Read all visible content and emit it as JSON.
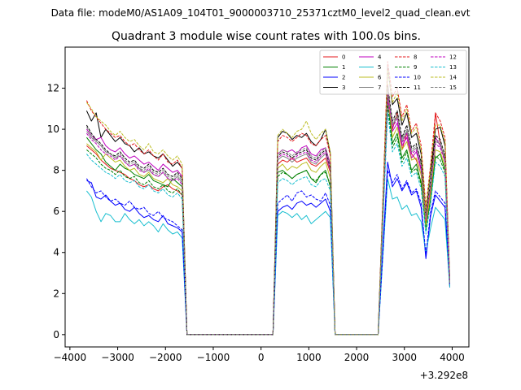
{
  "chart_data": {
    "type": "line",
    "suptitle": "Data file: modeM0/AS1A09_104T01_9000003710_25371cztM0_level2_quad_clean.evt",
    "title": "Quadrant 3 module wise count rates with 100.0s bins.",
    "xlabel": "",
    "ylabel": "",
    "x_offset_label": "+3.292e8",
    "xlim": [
      -4100,
      4350
    ],
    "ylim": [
      -0.6,
      14.0
    ],
    "xticks": [
      -4000,
      -3000,
      -2000,
      -1000,
      0,
      1000,
      2000,
      3000,
      4000
    ],
    "xtick_labels": [
      "−4000",
      "−3000",
      "−2000",
      "−1000",
      "0",
      "1000",
      "2000",
      "3000",
      "4000"
    ],
    "yticks": [
      0,
      2,
      4,
      6,
      8,
      10,
      12
    ],
    "ytick_labels": [
      "0",
      "2",
      "4",
      "6",
      "8",
      "10",
      "12"
    ],
    "grid": false,
    "legend_location": "top-right",
    "legend_columns": 4,
    "segments": [
      {
        "x0": -3650,
        "x1": -1650
      },
      {
        "x0": 350,
        "x1": 1450
      },
      {
        "x0": 2650,
        "x1": 3950
      }
    ],
    "gaps": [
      {
        "x": [
          -1550,
          250
        ]
      },
      {
        "x": [
          1550,
          2450
        ]
      }
    ],
    "segment_points": [
      21,
      12,
      14
    ],
    "spike_offsets": {
      "0": [
        0,
        0,
        0,
        0,
        0,
        0,
        0,
        0,
        0,
        0,
        0,
        0,
        0,
        0,
        0,
        0,
        0,
        0,
        0,
        0,
        0
      ],
      "1": [
        0,
        0,
        0,
        0,
        0,
        0,
        0,
        0,
        0,
        0,
        0,
        0
      ],
      "2": [
        0,
        0,
        0,
        0,
        0,
        0,
        0,
        0,
        0,
        0,
        0,
        0,
        0,
        0
      ]
    },
    "series": [
      {
        "name": "0",
        "color": "#e41a1c",
        "dash": "solid",
        "values": [
          [
            9.2,
            9.0,
            8.8,
            8.5,
            8.3,
            8.1,
            8.0,
            7.9,
            7.8,
            7.6,
            7.5,
            7.3,
            7.2,
            7.3,
            7.1,
            7.0,
            7.2,
            7.3,
            7.1,
            7.0,
            6.8
          ],
          [
            8.3,
            8.5,
            8.4,
            8.6,
            8.4,
            8.5,
            8.6,
            8.3,
            8.2,
            8.4,
            8.6,
            7.9
          ],
          [
            12.2,
            10.0,
            10.8,
            9.0,
            9.8,
            8.8,
            8.5,
            7.8,
            5.5,
            7.0,
            10.8,
            9.3,
            8.4,
            2.3
          ]
        ]
      },
      {
        "name": "1",
        "color": "#008000",
        "dash": "solid",
        "values": [
          [
            9.6,
            9.3,
            9.0,
            8.8,
            8.4,
            8.2,
            8.0,
            8.3,
            8.1,
            8.0,
            7.8,
            7.7,
            7.6,
            7.8,
            7.5,
            7.4,
            7.3,
            7.2,
            7.6,
            7.4,
            7.2
          ],
          [
            7.9,
            8.0,
            7.8,
            7.6,
            7.8,
            7.9,
            8.0,
            7.6,
            7.4,
            7.8,
            8.0,
            7.2
          ],
          [
            11.6,
            9.3,
            9.8,
            8.6,
            9.0,
            8.0,
            8.3,
            7.4,
            5.2,
            6.6,
            8.6,
            8.8,
            8.0,
            2.4
          ]
        ]
      },
      {
        "name": "2",
        "color": "#0000ff",
        "dash": "solid",
        "values": [
          [
            7.5,
            7.4,
            6.7,
            6.6,
            6.8,
            6.5,
            6.3,
            6.4,
            6.1,
            6.0,
            6.2,
            5.9,
            5.7,
            5.8,
            5.6,
            5.5,
            5.8,
            5.4,
            5.3,
            5.2,
            5.0
          ],
          [
            6.0,
            6.2,
            6.3,
            6.1,
            6.4,
            6.5,
            6.3,
            6.4,
            6.2,
            6.4,
            6.6,
            6.0
          ],
          [
            8.4,
            7.2,
            7.6,
            7.0,
            7.4,
            6.8,
            7.0,
            6.2,
            3.7,
            5.8,
            6.8,
            6.5,
            6.2,
            2.3
          ]
        ]
      },
      {
        "name": "3",
        "color": "#000000",
        "dash": "solid",
        "values": [
          [
            10.9,
            10.4,
            10.8,
            9.6,
            10.0,
            9.7,
            9.4,
            9.6,
            9.3,
            9.2,
            8.9,
            9.1,
            8.8,
            8.9,
            8.7,
            8.6,
            8.8,
            8.5,
            8.2,
            8.4,
            8.1
          ],
          [
            9.6,
            9.9,
            9.8,
            9.5,
            9.7,
            9.6,
            9.8,
            9.4,
            9.2,
            9.5,
            10.0,
            8.8
          ],
          [
            13.0,
            11.2,
            11.5,
            10.2,
            10.8,
            9.6,
            9.8,
            8.8,
            6.0,
            8.0,
            10.0,
            10.1,
            9.2,
            2.6
          ]
        ]
      },
      {
        "name": "4",
        "color": "#bf00bf",
        "dash": "solid",
        "values": [
          [
            10.0,
            9.7,
            9.5,
            9.6,
            9.2,
            9.0,
            8.9,
            9.1,
            8.8,
            8.6,
            8.7,
            8.5,
            8.3,
            8.4,
            8.2,
            8.0,
            8.3,
            8.1,
            7.9,
            8.0,
            7.7
          ],
          [
            8.8,
            9.0,
            8.9,
            9.0,
            8.8,
            9.1,
            9.2,
            8.8,
            8.7,
            9.0,
            9.1,
            8.3
          ],
          [
            11.4,
            9.9,
            10.3,
            9.2,
            9.6,
            8.6,
            8.9,
            8.0,
            5.6,
            7.4,
            9.6,
            9.2,
            8.6,
            2.5
          ]
        ]
      },
      {
        "name": "5",
        "color": "#17becf",
        "dash": "solid",
        "values": [
          [
            7.0,
            6.7,
            6.0,
            5.5,
            5.9,
            5.8,
            5.5,
            5.5,
            5.9,
            5.6,
            5.4,
            5.6,
            5.3,
            5.5,
            5.3,
            5.0,
            5.4,
            5.1,
            4.9,
            5.0,
            4.7
          ],
          [
            5.8,
            6.0,
            5.9,
            5.7,
            5.9,
            5.6,
            5.8,
            5.4,
            5.6,
            5.8,
            6.0,
            5.7
          ],
          [
            7.6,
            6.6,
            6.7,
            6.1,
            6.3,
            5.8,
            5.9,
            5.5,
            4.0,
            5.2,
            6.2,
            5.9,
            5.6,
            2.3
          ]
        ]
      },
      {
        "name": "6",
        "color": "#bcbd22",
        "dash": "solid",
        "values": [
          [
            9.3,
            9.1,
            8.9,
            8.5,
            8.8,
            8.6,
            8.4,
            8.5,
            8.2,
            8.0,
            8.1,
            7.8,
            7.7,
            7.9,
            7.6,
            7.5,
            7.4,
            7.6,
            7.3,
            7.2,
            7.0
          ],
          [
            8.1,
            8.3,
            8.0,
            8.2,
            8.1,
            8.3,
            8.4,
            8.0,
            7.9,
            8.2,
            8.4,
            7.6
          ],
          [
            11.8,
            9.6,
            10.1,
            9.0,
            9.4,
            8.5,
            8.6,
            7.8,
            5.3,
            6.9,
            9.0,
            8.9,
            8.2,
            2.4
          ]
        ]
      },
      {
        "name": "7",
        "color": "#808080",
        "dash": "solid",
        "values": [
          [
            9.9,
            9.6,
            9.4,
            9.2,
            8.9,
            8.8,
            8.6,
            8.7,
            8.4,
            8.2,
            8.3,
            8.1,
            7.9,
            8.0,
            7.8,
            7.7,
            7.9,
            7.6,
            7.5,
            7.7,
            7.4
          ],
          [
            8.5,
            8.7,
            8.6,
            8.4,
            8.6,
            8.7,
            8.8,
            8.4,
            8.3,
            8.6,
            8.8,
            8.0
          ],
          [
            11.9,
            10.2,
            10.6,
            9.4,
            9.9,
            8.9,
            9.1,
            8.2,
            5.7,
            7.3,
            9.4,
            9.3,
            8.5,
            2.5
          ]
        ]
      },
      {
        "name": "8",
        "color": "#e41a1c",
        "dash": "dashed",
        "values": [
          [
            11.4,
            10.9,
            10.6,
            10.3,
            10.0,
            9.8,
            9.6,
            9.7,
            9.4,
            9.2,
            9.3,
            9.0,
            8.8,
            9.0,
            8.7,
            8.5,
            8.8,
            8.4,
            8.3,
            8.5,
            8.1
          ],
          [
            9.4,
            9.7,
            9.6,
            9.4,
            9.6,
            9.8,
            9.7,
            9.3,
            9.2,
            9.5,
            9.7,
            8.7
          ],
          [
            13.3,
            11.6,
            12.0,
            10.6,
            11.2,
            9.9,
            10.3,
            9.2,
            6.2,
            8.3,
            10.8,
            10.4,
            9.6,
            2.7
          ]
        ]
      },
      {
        "name": "9",
        "color": "#008000",
        "dash": "dashed",
        "values": [
          [
            9.0,
            8.8,
            8.6,
            8.3,
            8.1,
            8.0,
            7.8,
            8.0,
            7.7,
            7.6,
            7.7,
            7.4,
            7.3,
            7.5,
            7.2,
            7.1,
            7.3,
            7.0,
            6.9,
            7.1,
            6.8
          ],
          [
            7.7,
            7.9,
            7.8,
            7.6,
            7.8,
            7.9,
            8.0,
            7.6,
            7.5,
            7.8,
            7.9,
            7.3
          ],
          [
            11.2,
            9.1,
            9.6,
            8.4,
            8.9,
            7.9,
            8.1,
            7.3,
            5.1,
            6.6,
            8.7,
            8.5,
            7.9,
            2.4
          ]
        ]
      },
      {
        "name": "10",
        "color": "#0000ff",
        "dash": "dashed",
        "values": [
          [
            7.6,
            7.2,
            6.9,
            7.0,
            6.7,
            6.5,
            6.6,
            6.4,
            6.3,
            6.5,
            6.2,
            6.1,
            6.2,
            5.9,
            5.8,
            6.0,
            5.7,
            5.6,
            5.5,
            5.3,
            5.1
          ],
          [
            6.4,
            6.6,
            6.8,
            6.5,
            6.9,
            7.0,
            6.7,
            6.8,
            6.6,
            6.5,
            6.9,
            6.3
          ],
          [
            8.0,
            7.4,
            7.8,
            7.1,
            7.5,
            6.9,
            7.1,
            6.4,
            3.9,
            6.0,
            7.0,
            6.7,
            6.4,
            2.4
          ]
        ]
      },
      {
        "name": "11",
        "color": "#000000",
        "dash": "dashed",
        "values": [
          [
            10.2,
            9.8,
            9.5,
            9.3,
            9.0,
            8.8,
            8.7,
            8.9,
            8.6,
            8.4,
            8.5,
            8.2,
            8.1,
            8.3,
            8.0,
            7.9,
            8.1,
            7.8,
            7.7,
            7.9,
            7.6
          ],
          [
            8.7,
            8.9,
            8.8,
            8.6,
            8.8,
            8.9,
            9.0,
            8.6,
            8.5,
            8.8,
            9.0,
            8.1
          ],
          [
            12.1,
            10.4,
            10.9,
            9.6,
            10.2,
            9.1,
            9.3,
            8.4,
            5.8,
            7.5,
            9.7,
            9.5,
            8.7,
            2.5
          ]
        ]
      },
      {
        "name": "12",
        "color": "#bf00bf",
        "dash": "dashed",
        "values": [
          [
            9.8,
            9.5,
            9.3,
            9.0,
            8.8,
            8.7,
            8.5,
            8.7,
            8.4,
            8.2,
            8.3,
            8.0,
            7.9,
            8.1,
            7.8,
            7.7,
            7.9,
            7.6,
            7.5,
            7.6,
            7.3
          ],
          [
            8.6,
            8.8,
            8.7,
            8.5,
            8.7,
            8.8,
            8.9,
            8.5,
            8.4,
            8.7,
            8.9,
            8.0
          ],
          [
            11.7,
            10.1,
            10.5,
            9.3,
            9.8,
            8.8,
            9.0,
            8.1,
            5.6,
            7.2,
            9.3,
            9.1,
            8.4,
            2.5
          ]
        ]
      },
      {
        "name": "13",
        "color": "#17becf",
        "dash": "dashed",
        "values": [
          [
            8.8,
            8.5,
            8.3,
            8.1,
            7.9,
            7.8,
            7.6,
            7.8,
            7.5,
            7.4,
            7.5,
            7.2,
            7.1,
            7.3,
            7.0,
            6.9,
            7.1,
            6.8,
            6.7,
            6.9,
            6.6
          ],
          [
            7.4,
            7.6,
            7.5,
            7.3,
            7.5,
            7.6,
            7.7,
            7.3,
            7.2,
            7.5,
            7.6,
            7.0
          ],
          [
            10.8,
            8.9,
            9.3,
            8.2,
            8.6,
            7.7,
            7.9,
            7.1,
            4.9,
            6.4,
            8.4,
            8.2,
            7.7,
            2.4
          ]
        ]
      },
      {
        "name": "14",
        "color": "#bcbd22",
        "dash": "dashed",
        "values": [
          [
            11.3,
            11.0,
            10.6,
            10.4,
            10.2,
            9.9,
            9.7,
            9.9,
            9.6,
            9.4,
            9.5,
            9.2,
            9.0,
            9.3,
            8.9,
            8.8,
            9.0,
            8.7,
            8.5,
            8.7,
            8.3
          ],
          [
            9.7,
            10.0,
            9.8,
            9.6,
            9.9,
            10.0,
            10.4,
            9.8,
            9.5,
            9.8,
            10.0,
            8.9
          ],
          [
            12.9,
            11.3,
            11.8,
            10.4,
            11.0,
            9.8,
            10.1,
            9.0,
            6.0,
            8.2,
            10.2,
            10.2,
            9.4,
            2.6
          ]
        ]
      },
      {
        "name": "15",
        "color": "#808080",
        "dash": "dashed",
        "values": [
          [
            10.1,
            9.7,
            9.4,
            9.2,
            8.9,
            8.8,
            8.6,
            8.8,
            8.5,
            8.3,
            8.4,
            8.1,
            8.0,
            8.2,
            7.9,
            7.8,
            8.0,
            7.7,
            7.6,
            7.8,
            7.5
          ],
          [
            8.8,
            9.0,
            8.9,
            8.7,
            8.9,
            9.0,
            9.1,
            8.7,
            8.6,
            8.9,
            9.1,
            8.2
          ],
          [
            12.0,
            10.3,
            10.7,
            9.5,
            10.0,
            9.0,
            9.2,
            8.3,
            5.7,
            7.4,
            9.5,
            9.4,
            8.6,
            2.5
          ]
        ]
      }
    ]
  }
}
